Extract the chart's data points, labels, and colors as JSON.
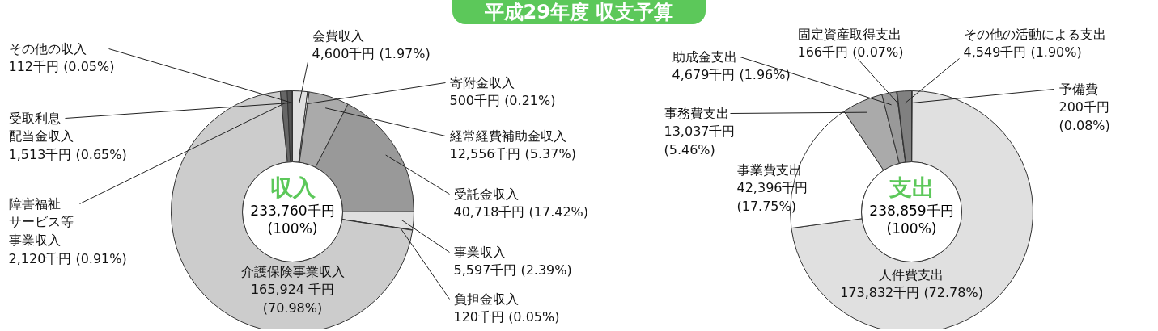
{
  "chart_data": [
    {
      "type": "donut",
      "title": "平成29年度 収支予算",
      "subtitle": "収入",
      "categories": [
        "会費収入",
        "寄附金収入",
        "経常経費補助金収入",
        "受託金収入",
        "事業収入",
        "負担金収入",
        "介護保険事業収入",
        "障害福祉サービス等事業収入",
        "受取利息配当金収入",
        "その他の収入"
      ],
      "values": [
        4600,
        500,
        12556,
        40718,
        5597,
        120,
        165924,
        2120,
        1513,
        112
      ],
      "colors": [
        "#e0e0e0",
        "#ffffff",
        "#aaaaaa",
        "#999999",
        "#e0e0e0",
        "#888888",
        "#cccccc",
        "#666666",
        "#555555",
        "#ffffff"
      ],
      "value_labels": [
        "4,600千円 (1.97%)",
        "500千円 (0.21%)",
        "12,556千円 (5.37%)",
        "40,718千円 (17.42%)",
        "5,597千円 (2.39%)",
        "120千円 (0.05%)",
        "165,924 千円 (70.98%)",
        "2,120千円 (0.91%)",
        "1,513千円 (0.65%)",
        "112千円 (0.05%)"
      ],
      "annotations": [
        "233,760千円",
        "(100%)"
      ]
    },
    {
      "type": "donut",
      "subtitle": "支出",
      "categories": [
        "予備費",
        "人件費支出",
        "事業費支出",
        "事務費支出",
        "助成金支出",
        "固定資産取得支出",
        "その他の活動による支出"
      ],
      "values": [
        200,
        173832,
        42396,
        13037,
        4679,
        166,
        4549
      ],
      "colors": [
        "#ffffff",
        "#e0e0e0",
        "#ffffff",
        "#aaaaaa",
        "#999999",
        "#ffffff",
        "#808080"
      ],
      "value_labels": [
        "200千円 (0.08%)",
        "173,832千円 (72.78%)",
        "42,396千円 (17.75%)",
        "13,037千円 (5.46%)",
        "4,679千円 (1.96%)",
        "166千円 (0.07%)",
        "4,549千円 (1.90%)"
      ],
      "annotations": [
        "238,859千円",
        "(100%)"
      ]
    }
  ]
}
